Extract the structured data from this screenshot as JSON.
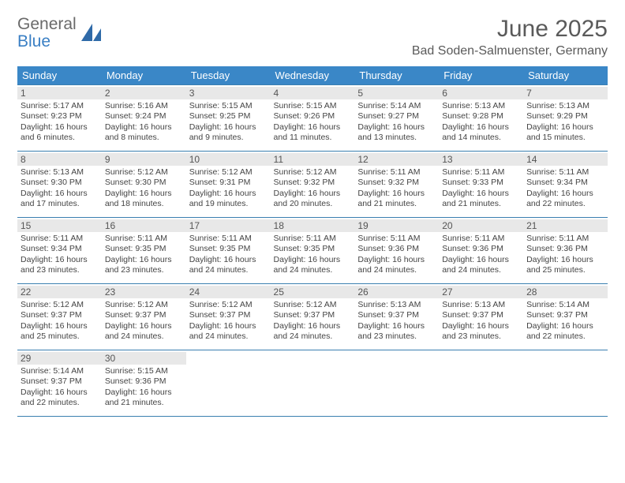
{
  "logo": {
    "line1": "General",
    "line2": "Blue"
  },
  "title": "June 2025",
  "location": "Bad Soden-Salmuenster, Germany",
  "colors": {
    "header_bg": "#3a87c7",
    "header_text": "#ffffff",
    "border": "#3a7fb0",
    "daynum_bg": "#e8e8e8",
    "text": "#444444"
  },
  "font": {
    "family": "Arial",
    "cell_size_pt": 8,
    "title_size_pt": 22,
    "header_size_pt": 10
  },
  "dayHeaders": [
    "Sunday",
    "Monday",
    "Tuesday",
    "Wednesday",
    "Thursday",
    "Friday",
    "Saturday"
  ],
  "weeks": [
    [
      {
        "day": "1",
        "sunrise": "Sunrise: 5:17 AM",
        "sunset": "Sunset: 9:23 PM",
        "daylight": "Daylight: 16 hours and 6 minutes."
      },
      {
        "day": "2",
        "sunrise": "Sunrise: 5:16 AM",
        "sunset": "Sunset: 9:24 PM",
        "daylight": "Daylight: 16 hours and 8 minutes."
      },
      {
        "day": "3",
        "sunrise": "Sunrise: 5:15 AM",
        "sunset": "Sunset: 9:25 PM",
        "daylight": "Daylight: 16 hours and 9 minutes."
      },
      {
        "day": "4",
        "sunrise": "Sunrise: 5:15 AM",
        "sunset": "Sunset: 9:26 PM",
        "daylight": "Daylight: 16 hours and 11 minutes."
      },
      {
        "day": "5",
        "sunrise": "Sunrise: 5:14 AM",
        "sunset": "Sunset: 9:27 PM",
        "daylight": "Daylight: 16 hours and 13 minutes."
      },
      {
        "day": "6",
        "sunrise": "Sunrise: 5:13 AM",
        "sunset": "Sunset: 9:28 PM",
        "daylight": "Daylight: 16 hours and 14 minutes."
      },
      {
        "day": "7",
        "sunrise": "Sunrise: 5:13 AM",
        "sunset": "Sunset: 9:29 PM",
        "daylight": "Daylight: 16 hours and 15 minutes."
      }
    ],
    [
      {
        "day": "8",
        "sunrise": "Sunrise: 5:13 AM",
        "sunset": "Sunset: 9:30 PM",
        "daylight": "Daylight: 16 hours and 17 minutes."
      },
      {
        "day": "9",
        "sunrise": "Sunrise: 5:12 AM",
        "sunset": "Sunset: 9:30 PM",
        "daylight": "Daylight: 16 hours and 18 minutes."
      },
      {
        "day": "10",
        "sunrise": "Sunrise: 5:12 AM",
        "sunset": "Sunset: 9:31 PM",
        "daylight": "Daylight: 16 hours and 19 minutes."
      },
      {
        "day": "11",
        "sunrise": "Sunrise: 5:12 AM",
        "sunset": "Sunset: 9:32 PM",
        "daylight": "Daylight: 16 hours and 20 minutes."
      },
      {
        "day": "12",
        "sunrise": "Sunrise: 5:11 AM",
        "sunset": "Sunset: 9:32 PM",
        "daylight": "Daylight: 16 hours and 21 minutes."
      },
      {
        "day": "13",
        "sunrise": "Sunrise: 5:11 AM",
        "sunset": "Sunset: 9:33 PM",
        "daylight": "Daylight: 16 hours and 21 minutes."
      },
      {
        "day": "14",
        "sunrise": "Sunrise: 5:11 AM",
        "sunset": "Sunset: 9:34 PM",
        "daylight": "Daylight: 16 hours and 22 minutes."
      }
    ],
    [
      {
        "day": "15",
        "sunrise": "Sunrise: 5:11 AM",
        "sunset": "Sunset: 9:34 PM",
        "daylight": "Daylight: 16 hours and 23 minutes."
      },
      {
        "day": "16",
        "sunrise": "Sunrise: 5:11 AM",
        "sunset": "Sunset: 9:35 PM",
        "daylight": "Daylight: 16 hours and 23 minutes."
      },
      {
        "day": "17",
        "sunrise": "Sunrise: 5:11 AM",
        "sunset": "Sunset: 9:35 PM",
        "daylight": "Daylight: 16 hours and 24 minutes."
      },
      {
        "day": "18",
        "sunrise": "Sunrise: 5:11 AM",
        "sunset": "Sunset: 9:35 PM",
        "daylight": "Daylight: 16 hours and 24 minutes."
      },
      {
        "day": "19",
        "sunrise": "Sunrise: 5:11 AM",
        "sunset": "Sunset: 9:36 PM",
        "daylight": "Daylight: 16 hours and 24 minutes."
      },
      {
        "day": "20",
        "sunrise": "Sunrise: 5:11 AM",
        "sunset": "Sunset: 9:36 PM",
        "daylight": "Daylight: 16 hours and 24 minutes."
      },
      {
        "day": "21",
        "sunrise": "Sunrise: 5:11 AM",
        "sunset": "Sunset: 9:36 PM",
        "daylight": "Daylight: 16 hours and 25 minutes."
      }
    ],
    [
      {
        "day": "22",
        "sunrise": "Sunrise: 5:12 AM",
        "sunset": "Sunset: 9:37 PM",
        "daylight": "Daylight: 16 hours and 25 minutes."
      },
      {
        "day": "23",
        "sunrise": "Sunrise: 5:12 AM",
        "sunset": "Sunset: 9:37 PM",
        "daylight": "Daylight: 16 hours and 24 minutes."
      },
      {
        "day": "24",
        "sunrise": "Sunrise: 5:12 AM",
        "sunset": "Sunset: 9:37 PM",
        "daylight": "Daylight: 16 hours and 24 minutes."
      },
      {
        "day": "25",
        "sunrise": "Sunrise: 5:12 AM",
        "sunset": "Sunset: 9:37 PM",
        "daylight": "Daylight: 16 hours and 24 minutes."
      },
      {
        "day": "26",
        "sunrise": "Sunrise: 5:13 AM",
        "sunset": "Sunset: 9:37 PM",
        "daylight": "Daylight: 16 hours and 23 minutes."
      },
      {
        "day": "27",
        "sunrise": "Sunrise: 5:13 AM",
        "sunset": "Sunset: 9:37 PM",
        "daylight": "Daylight: 16 hours and 23 minutes."
      },
      {
        "day": "28",
        "sunrise": "Sunrise: 5:14 AM",
        "sunset": "Sunset: 9:37 PM",
        "daylight": "Daylight: 16 hours and 22 minutes."
      }
    ],
    [
      {
        "day": "29",
        "sunrise": "Sunrise: 5:14 AM",
        "sunset": "Sunset: 9:37 PM",
        "daylight": "Daylight: 16 hours and 22 minutes."
      },
      {
        "day": "30",
        "sunrise": "Sunrise: 5:15 AM",
        "sunset": "Sunset: 9:36 PM",
        "daylight": "Daylight: 16 hours and 21 minutes."
      },
      null,
      null,
      null,
      null,
      null
    ]
  ]
}
